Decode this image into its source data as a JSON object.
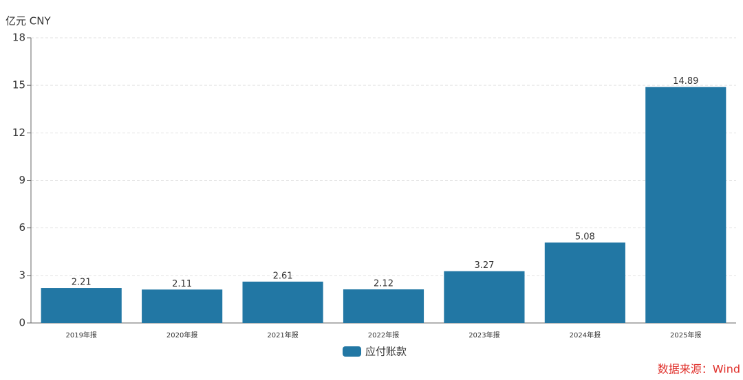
{
  "chart_data": {
    "type": "bar",
    "y_axis_label": "亿元  CNY",
    "categories": [
      "2019年报",
      "2020年报",
      "2021年报",
      "2022年报",
      "2023年报",
      "2024年报",
      "2025年报"
    ],
    "series": [
      {
        "name": "应付账款",
        "color": "#2277a4",
        "values": [
          2.21,
          2.11,
          2.61,
          2.12,
          3.27,
          5.08,
          14.89
        ]
      }
    ],
    "ylim": [
      0,
      18
    ],
    "yticks": [
      0,
      3,
      6,
      9,
      12,
      15,
      18
    ],
    "grid": true,
    "source": "数据来源：Wind"
  }
}
